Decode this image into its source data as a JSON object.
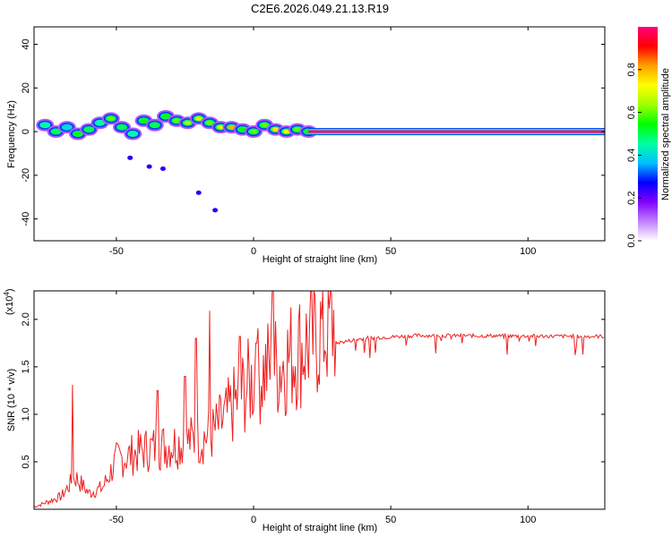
{
  "title": "C2E6.2026.049.21.13.R19",
  "chart_data": [
    {
      "type": "heatmap",
      "name": "spectrogram",
      "xlabel": "Height of straight line (km)",
      "ylabel": "Frequency (Hz)",
      "xlim": [
        -80,
        128
      ],
      "ylim": [
        -50,
        48
      ],
      "xticks": [
        -50,
        0,
        50,
        100
      ],
      "yticks": [
        -40,
        -20,
        0,
        20,
        40
      ],
      "colorbar": {
        "label": "Normalized spectral amplitude",
        "range": [
          0,
          1
        ],
        "ticks": [
          0.0,
          0.2,
          0.4,
          0.6,
          0.8
        ],
        "colormap": [
          "#ffffff",
          "#c080ff",
          "#8000ff",
          "#0000ff",
          "#00c0ff",
          "#00ffa0",
          "#00ff00",
          "#a0ff00",
          "#ffff00",
          "#ffa000",
          "#ff0000",
          "#ff0080"
        ]
      },
      "blobs": [
        {
          "x": -76,
          "f": 3,
          "amp": 0.45
        },
        {
          "x": -72,
          "f": 0,
          "amp": 0.5
        },
        {
          "x": -68,
          "f": 2,
          "amp": 0.4
        },
        {
          "x": -64,
          "f": -1,
          "amp": 0.55
        },
        {
          "x": -60,
          "f": 1,
          "amp": 0.5
        },
        {
          "x": -56,
          "f": 4,
          "amp": 0.45
        },
        {
          "x": -52,
          "f": 6,
          "amp": 0.6
        },
        {
          "x": -48,
          "f": 2,
          "amp": 0.5
        },
        {
          "x": -44,
          "f": -1,
          "amp": 0.45
        },
        {
          "x": -40,
          "f": 5,
          "amp": 0.55
        },
        {
          "x": -36,
          "f": 3,
          "amp": 0.5
        },
        {
          "x": -32,
          "f": 7,
          "amp": 0.55
        },
        {
          "x": -28,
          "f": 5,
          "amp": 0.6
        },
        {
          "x": -24,
          "f": 4,
          "amp": 0.65
        },
        {
          "x": -20,
          "f": 6,
          "amp": 0.75
        },
        {
          "x": -16,
          "f": 4,
          "amp": 0.6
        },
        {
          "x": -12,
          "f": 2,
          "amp": 0.7
        },
        {
          "x": -8,
          "f": 2,
          "amp": 0.8
        },
        {
          "x": -4,
          "f": 1,
          "amp": 0.55
        },
        {
          "x": 0,
          "f": 0,
          "amp": 0.6
        },
        {
          "x": 4,
          "f": 3,
          "amp": 0.6
        },
        {
          "x": 8,
          "f": 1,
          "amp": 0.75
        },
        {
          "x": 12,
          "f": 0,
          "amp": 0.7
        },
        {
          "x": 16,
          "f": 1,
          "amp": 0.6
        },
        {
          "x": 20,
          "f": 0,
          "amp": 0.55
        }
      ],
      "outliers": [
        {
          "x": -45,
          "f": -12
        },
        {
          "x": -38,
          "f": -16
        },
        {
          "x": -33,
          "f": -17
        },
        {
          "x": -20,
          "f": -28
        },
        {
          "x": -14,
          "f": -36
        }
      ],
      "steady_line": {
        "x_start": 20,
        "x_end": 128,
        "f": 0,
        "amp": 1.0
      }
    },
    {
      "type": "line",
      "name": "snr",
      "xlabel": "Height of straight line (km)",
      "ylabel": "SNR (10 * v/v)",
      "scale_note_base": "(x10",
      "scale_note_exp": "4",
      "scale_note_close": ")",
      "xlim": [
        -80,
        128
      ],
      "ylim": [
        0,
        2.3
      ],
      "xticks": [
        -50,
        0,
        50,
        100
      ],
      "yticks": [
        0.5,
        1.0,
        1.5,
        2.0
      ],
      "line_color": "#ee2020",
      "envelope": [
        [
          -80,
          0.02
        ],
        [
          -70,
          0.12
        ],
        [
          -65,
          0.3
        ],
        [
          -60,
          0.15
        ],
        [
          -55,
          0.2
        ],
        [
          -50,
          0.45
        ],
        [
          -40,
          0.55
        ],
        [
          -30,
          0.6
        ],
        [
          -20,
          0.65
        ],
        [
          -15,
          0.7
        ],
        [
          -10,
          0.85
        ],
        [
          -5,
          1.05
        ],
        [
          0,
          1.2
        ],
        [
          5,
          1.3
        ],
        [
          10,
          1.35
        ],
        [
          15,
          1.45
        ],
        [
          20,
          1.55
        ],
        [
          25,
          1.65
        ],
        [
          30,
          1.75
        ],
        [
          40,
          1.8
        ],
        [
          60,
          1.83
        ],
        [
          128,
          1.82
        ]
      ],
      "peaks": [
        {
          "x": -66,
          "y": 1.31
        },
        {
          "x": -16,
          "y": 2.09
        },
        {
          "x": -21,
          "y": 1.8
        },
        {
          "x": 7,
          "y": 2.3
        },
        {
          "x": -5,
          "y": 1.82
        },
        {
          "x": 1,
          "y": 1.75
        },
        {
          "x": -25,
          "y": 1.4
        },
        {
          "x": -35,
          "y": 1.25
        }
      ]
    }
  ]
}
